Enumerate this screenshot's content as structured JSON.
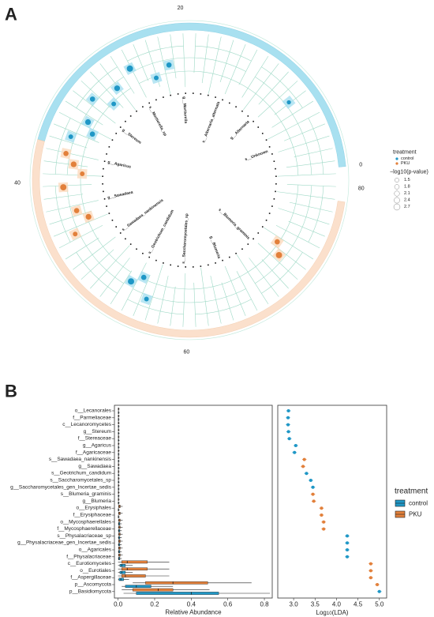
{
  "panel_labels": [
    "A",
    "B"
  ],
  "chart_data": [
    {
      "type": "cladogram",
      "theta_lim": [
        0,
        81.8
      ],
      "theta_ticks": [
        0,
        20,
        40,
        60,
        80
      ],
      "tip_labels": [
        "s__Unknown",
        "g__Alternaria",
        "s__Alternaria_alternata",
        "g__Mortierella",
        "s__Mortierella_sp",
        "g__Stereum",
        "g__Agaricus",
        "g__Sawadaea",
        "s__Sawadaea_nankinensis",
        "s__Geotrichum_candidum",
        "s__Saccharomycetales_sp",
        "g__Blumeria",
        "s__Blumeria_graminis"
      ],
      "legend_title": "treatment",
      "size_title": "−log10(p-value)",
      "size_legend": [
        1.5,
        1.8,
        2.1,
        2.4,
        2.7
      ],
      "series": [
        {
          "name": "control",
          "color": "#1f97c6",
          "theta": [
            7.5,
            21.6,
            23.4,
            25.7,
            28,
            29.5,
            30.7,
            33,
            34,
            35.2,
            53.4,
            54.5,
            55.7
          ],
          "size": [
            1.5,
            2.1,
            1.8,
            2.7,
            2.4,
            1.8,
            2.1,
            2.4,
            2.1,
            1.8,
            2.7,
            2.1,
            1.8
          ]
        },
        {
          "name": "PKU",
          "color": "#e2803b",
          "theta": [
            37,
            38,
            39,
            40.5,
            43.2,
            44.3,
            45.5,
            71.6,
            72.7
          ],
          "size": [
            2.1,
            2.4,
            1.8,
            2.7,
            2.1,
            2.4,
            1.8,
            2.7,
            2.1
          ]
        }
      ]
    },
    {
      "type": "box",
      "categories": [
        "o__Lecanorales",
        "f__Parmeliaceae",
        "c__Lecanoromycetes",
        "g__Stereum",
        "f__Stereaceae",
        "g__Agaricus",
        "f__Agaricaceae",
        "s__Sawadaea_nankinensis",
        "g__Sawadaea",
        "s__Geotrichum_candidum",
        "s__Saccharomycetales_sp",
        "g__Saccharomycetales_gen_Incertae_sedis",
        "s__Blumeria_graminis",
        "g__Blumeria",
        "o__Erysiphales",
        "f__Erysiphaceae",
        "o__Mycosphaerellales",
        "f__Mycosphaerellaceae",
        "s__Physalacriaceae_sp",
        "g__Physalacriaceae_gen_Incertae_sedis",
        "o__Agaricales",
        "f__Physalacriaceae",
        "c__Eurotiomycetes",
        "o__Eurotiales",
        "f__Aspergillaceae",
        "p__Ascomycota",
        "p__Basidiomycota"
      ],
      "x_label": "Relative Abundance",
      "xlim": [
        -0.02,
        0.843
      ],
      "xticks": [
        {
          "value": 0,
          "label": "0.0"
        },
        {
          "value": 0.2,
          "label": "0.2"
        },
        {
          "value": 0.4,
          "label": "0.4"
        },
        {
          "value": 0.6,
          "label": "0.6"
        },
        {
          "value": 0.8,
          "label": "0.8"
        }
      ],
      "legend_title": "treatment",
      "series": [
        {
          "name": "control",
          "color": "#1f97c6",
          "min": [
            0,
            0,
            0,
            0,
            0,
            0,
            0,
            0,
            0,
            0,
            0,
            0,
            0,
            0,
            0,
            0,
            0,
            0,
            0,
            0,
            0,
            0,
            0,
            0,
            0,
            0.02,
            0.03
          ],
          "q1": [
            0.001,
            0.001,
            0.001,
            0.001,
            0.001,
            0.001,
            0.001,
            0.001,
            0.001,
            0.001,
            0.001,
            0.001,
            0.001,
            0.001,
            0.001,
            0.001,
            0.002,
            0.002,
            0.002,
            0.002,
            0.002,
            0.002,
            0.01,
            0.01,
            0.005,
            0.04,
            0.1
          ],
          "median": [
            0.002,
            0.002,
            0.002,
            0.002,
            0.002,
            0.002,
            0.002,
            0.002,
            0.002,
            0.002,
            0.002,
            0.002,
            0.002,
            0.002,
            0.002,
            0.002,
            0.005,
            0.005,
            0.005,
            0.005,
            0.005,
            0.005,
            0.02,
            0.02,
            0.015,
            0.1,
            0.4
          ],
          "q3": [
            0.004,
            0.004,
            0.004,
            0.004,
            0.004,
            0.004,
            0.004,
            0.004,
            0.004,
            0.004,
            0.004,
            0.004,
            0.004,
            0.004,
            0.004,
            0.004,
            0.01,
            0.01,
            0.01,
            0.01,
            0.01,
            0.01,
            0.04,
            0.04,
            0.03,
            0.18,
            0.55
          ],
          "max": [
            0.008,
            0.008,
            0.008,
            0.008,
            0.008,
            0.008,
            0.008,
            0.008,
            0.008,
            0.008,
            0.008,
            0.008,
            0.008,
            0.008,
            0.008,
            0.008,
            0.02,
            0.02,
            0.02,
            0.02,
            0.02,
            0.02,
            0.08,
            0.08,
            0.06,
            0.3,
            0.83
          ]
        },
        {
          "name": "PKU",
          "color": "#e2803b",
          "min": [
            0,
            0,
            0,
            0,
            0,
            0,
            0,
            0,
            0,
            0,
            0,
            0,
            0,
            0,
            0,
            0,
            0,
            0,
            0,
            0,
            0,
            0,
            0,
            0,
            0,
            0.08,
            0.02
          ],
          "q1": [
            0.001,
            0.001,
            0.001,
            0.001,
            0.001,
            0.001,
            0.001,
            0.001,
            0.001,
            0.001,
            0.001,
            0.001,
            0.001,
            0.001,
            0.003,
            0.003,
            0.003,
            0.003,
            0.003,
            0.003,
            0.003,
            0.003,
            0.02,
            0.02,
            0.02,
            0.15,
            0.08
          ],
          "median": [
            0.002,
            0.002,
            0.002,
            0.002,
            0.002,
            0.002,
            0.002,
            0.002,
            0.002,
            0.002,
            0.002,
            0.002,
            0.002,
            0.002,
            0.006,
            0.006,
            0.006,
            0.006,
            0.006,
            0.006,
            0.006,
            0.006,
            0.05,
            0.05,
            0.04,
            0.3,
            0.22
          ],
          "q3": [
            0.004,
            0.004,
            0.004,
            0.004,
            0.004,
            0.004,
            0.004,
            0.004,
            0.004,
            0.004,
            0.004,
            0.004,
            0.004,
            0.004,
            0.012,
            0.012,
            0.012,
            0.012,
            0.012,
            0.012,
            0.012,
            0.012,
            0.16,
            0.16,
            0.15,
            0.49,
            0.3
          ],
          "max": [
            0.008,
            0.008,
            0.008,
            0.008,
            0.008,
            0.008,
            0.008,
            0.008,
            0.008,
            0.008,
            0.008,
            0.008,
            0.008,
            0.008,
            0.025,
            0.025,
            0.025,
            0.025,
            0.025,
            0.025,
            0.025,
            0.025,
            0.28,
            0.28,
            0.28,
            0.73,
            0.5
          ]
        }
      ]
    },
    {
      "type": "dot",
      "x_label": [
        "Log",
        "10",
        "(LDA)"
      ],
      "xlim": [
        2.63,
        5.17
      ],
      "xticks": [
        {
          "value": 3,
          "label": "3.0"
        },
        {
          "value": 3.5,
          "label": "3.5"
        },
        {
          "value": 4,
          "label": "4.0"
        },
        {
          "value": 4.5,
          "label": "4.5"
        },
        {
          "value": 5,
          "label": "5.0"
        }
      ],
      "series": [
        {
          "color": "#1f97c6",
          "values": [
            2.88,
            2.87,
            2.87,
            2.88,
            2.9,
            3.05,
            3.02,
            null,
            null,
            3.3,
            3.4,
            3.45,
            null,
            null,
            null,
            null,
            null,
            null,
            4.25,
            4.25,
            4.25,
            4.25,
            null,
            null,
            null,
            null,
            5.0
          ],
          "errors": [
            0.05,
            0.05,
            0.05,
            0.05,
            0.05,
            0.05,
            0.05,
            null,
            null,
            0.05,
            0.05,
            0.05,
            null,
            null,
            null,
            null,
            null,
            null,
            0.05,
            0.05,
            0.05,
            0.05,
            null,
            null,
            null,
            null,
            0.05
          ]
        },
        {
          "color": "#e2803b",
          "values": [
            null,
            null,
            null,
            null,
            null,
            null,
            null,
            3.25,
            3.22,
            null,
            null,
            null,
            3.45,
            3.47,
            3.65,
            3.65,
            3.7,
            3.7,
            null,
            null,
            null,
            null,
            4.8,
            4.8,
            4.8,
            4.95,
            null
          ],
          "errors": [
            null,
            null,
            null,
            null,
            null,
            null,
            null,
            0.05,
            0.05,
            null,
            null,
            null,
            0.05,
            0.05,
            0.05,
            0.05,
            0.05,
            0.05,
            null,
            null,
            null,
            null,
            0.05,
            0.05,
            0.05,
            0.05,
            null
          ]
        }
      ]
    }
  ]
}
